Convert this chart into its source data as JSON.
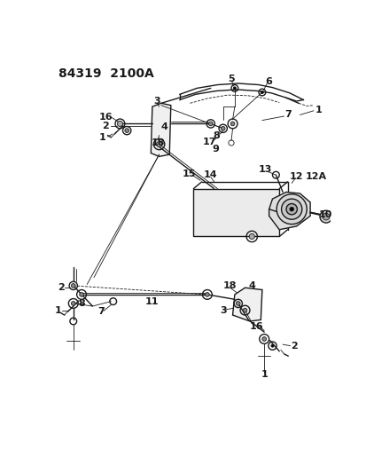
{
  "title": "84319  2100A",
  "bg_color": "#ffffff",
  "line_color": "#1a1a1a",
  "figsize": [
    4.14,
    5.33
  ],
  "dpi": 100,
  "xlim": [
    0,
    414
  ],
  "ylim": [
    0,
    533
  ]
}
